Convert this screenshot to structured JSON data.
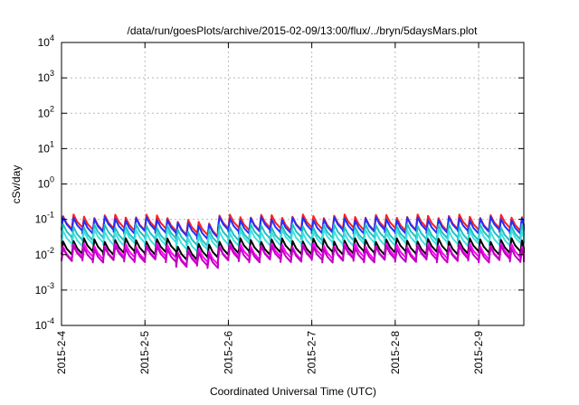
{
  "chart_data": {
    "type": "line",
    "title": "/data/run/goesPlots/archive/2015-02-09/13:00/flux/../bryn/5daysMars.plot",
    "xlabel": "Coordinated Universal Time (UTC)",
    "ylabel": "cSv/day",
    "yscale": "log",
    "ylim": [
      0.0001,
      10000
    ],
    "xlim": [
      "2015-02-04",
      "2015-02-09 13:00"
    ],
    "grid": true,
    "y_ticks": [
      {
        "value": 0.0001,
        "base": "10",
        "exp": "-4"
      },
      {
        "value": 0.001,
        "base": "10",
        "exp": "-3"
      },
      {
        "value": 0.01,
        "base": "10",
        "exp": "-2"
      },
      {
        "value": 0.1,
        "base": "10",
        "exp": "-1"
      },
      {
        "value": 1,
        "base": "10",
        "exp": "0"
      },
      {
        "value": 10,
        "base": "10",
        "exp": "1"
      },
      {
        "value": 100,
        "base": "10",
        "exp": "2"
      },
      {
        "value": 1000,
        "base": "10",
        "exp": "3"
      },
      {
        "value": 10000,
        "base": "10",
        "exp": "4"
      }
    ],
    "x_ticks": [
      "2015-2-4",
      "2015-2-5",
      "2015-2-6",
      "2015-2-7",
      "2015-2-8",
      "2015-2-9"
    ],
    "series": [
      {
        "color": "#ff2020",
        "level": 0.085
      },
      {
        "color": "#2030ff",
        "level": 0.072
      },
      {
        "color": "#20c0c0",
        "level": 0.045
      },
      {
        "color": "#40e0e0",
        "level": 0.032
      },
      {
        "color": "#000000",
        "level": 0.018
      },
      {
        "color": "#ff00ff",
        "level": 0.013
      },
      {
        "color": "#c000c0",
        "level": 0.011
      }
    ],
    "pattern": {
      "period_days": 0.125,
      "rise_factor": 1.45,
      "decay_factor": 0.62
    },
    "feature": {
      "low_segment_start": "2015-02-05 08:00",
      "low_segment_end": "2015-02-05 20:00",
      "low_factor": 0.7
    }
  }
}
